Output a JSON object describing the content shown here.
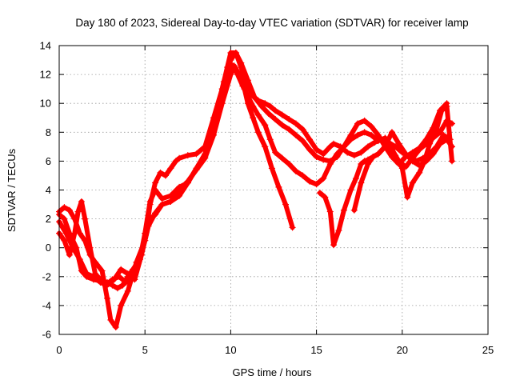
{
  "chart_data": {
    "type": "scatter",
    "title": "Day 180 of 2023, Sidereal Day-to-day VTEC variation (SDTVAR) for receiver lamp",
    "xlabel": "GPS time / hours",
    "ylabel": "SDTVAR / TECUs",
    "xlim": [
      0,
      25
    ],
    "ylim": [
      -6,
      14
    ],
    "xticks": [
      "0",
      "5",
      "10",
      "15",
      "20",
      "25"
    ],
    "yticks": [
      "-6",
      "-4",
      "-2",
      "0",
      "2",
      "4",
      "6",
      "8",
      "10",
      "12",
      "14"
    ],
    "grid": true,
    "marker": "+",
    "color": "#ff0000",
    "series": [
      {
        "name": "track-1",
        "x": [
          0.0,
          0.3,
          0.6,
          1.0,
          1.3,
          1.6,
          2.0,
          2.4,
          2.8,
          3.1,
          3.4,
          3.7,
          4.0,
          4.3,
          4.7,
          5.0,
          5.3,
          5.6,
          6.0,
          6.5,
          7.0,
          7.5,
          8.0,
          8.5,
          9.0,
          9.5,
          9.8,
          10.0,
          10.2,
          10.4,
          10.6,
          10.8,
          11.0,
          11.3,
          11.6,
          12.0,
          12.4,
          12.8,
          13.2,
          13.6
        ],
        "y": [
          2.3,
          2.0,
          1.0,
          0.0,
          -1.6,
          -2.0,
          -2.2,
          -2.3,
          -2.4,
          -2.6,
          -2.8,
          -2.6,
          -2.0,
          -1.5,
          -0.8,
          0.5,
          2.0,
          2.3,
          3.0,
          3.2,
          3.6,
          4.5,
          5.5,
          6.5,
          8.5,
          10.5,
          11.8,
          12.7,
          12.6,
          12.2,
          11.8,
          11.0,
          10.0,
          9.0,
          8.0,
          7.0,
          5.5,
          4.2,
          3.0,
          1.4
        ]
      },
      {
        "name": "track-2",
        "x": [
          0.0,
          0.3,
          0.6,
          0.9,
          1.2,
          1.5,
          1.8,
          2.1,
          2.5,
          2.8,
          3.0,
          3.3,
          3.6,
          4.0,
          4.5,
          5.0,
          5.3,
          5.6,
          5.9,
          6.2,
          6.5,
          6.8,
          7.0,
          7.5,
          8.0,
          8.5,
          9.0,
          9.5,
          9.8,
          10.0,
          10.3,
          10.6,
          11.0,
          11.3,
          11.6,
          12.0,
          12.3,
          12.6,
          13.0,
          13.4,
          13.8,
          14.2,
          14.6,
          15.0,
          15.4,
          15.8,
          16.0,
          16.4,
          16.8,
          17.2,
          17.6,
          18.0,
          18.4,
          18.8,
          19.2,
          19.6,
          20.0,
          20.4,
          20.8,
          21.2,
          21.6,
          22.0,
          22.4,
          22.8
        ],
        "y": [
          2.5,
          2.8,
          2.6,
          2.0,
          1.0,
          0.5,
          -0.5,
          -1.0,
          -1.6,
          -3.5,
          -5.0,
          -5.5,
          -4.0,
          -3.0,
          -1.0,
          0.5,
          3.0,
          4.5,
          5.2,
          5.0,
          5.5,
          6.0,
          6.2,
          6.4,
          6.5,
          7.0,
          9.0,
          11.0,
          12.5,
          13.5,
          13.5,
          12.5,
          11.2,
          10.5,
          10.2,
          10.0,
          9.8,
          9.5,
          9.2,
          8.9,
          8.6,
          8.2,
          7.5,
          6.8,
          6.5,
          7.0,
          7.2,
          7.0,
          6.6,
          6.4,
          6.6,
          7.0,
          7.3,
          7.5,
          7.3,
          7.0,
          6.6,
          6.3,
          6.0,
          6.2,
          6.5,
          7.0,
          7.8,
          7.5
        ]
      },
      {
        "name": "track-3",
        "x": [
          0.0,
          0.3,
          0.6,
          0.9,
          1.1,
          1.3,
          1.5,
          1.8,
          2.1,
          2.4,
          2.8,
          3.1,
          3.5,
          3.9,
          4.3,
          4.7,
          5.0,
          5.3,
          5.6,
          6.0,
          6.5,
          7.0,
          7.5,
          8.0,
          8.5,
          9.0,
          9.3,
          9.6,
          10.0,
          10.3,
          10.6,
          11.0,
          11.4,
          11.8,
          12.2,
          12.6,
          13.0,
          13.4,
          13.8,
          14.2,
          14.6,
          15.0,
          15.4,
          15.8,
          16.2,
          16.6,
          17.0,
          17.4,
          17.8,
          18.2,
          18.6,
          19.0,
          19.4,
          19.8,
          20.2,
          20.6,
          21.0,
          21.4,
          21.8,
          22.2,
          22.6
        ],
        "y": [
          1.0,
          0.5,
          -0.5,
          1.0,
          2.5,
          3.2,
          2.0,
          0.0,
          -1.8,
          -2.2,
          -2.5,
          -2.2,
          -2.0,
          -2.4,
          -1.8,
          -0.8,
          1.0,
          3.2,
          4.0,
          3.4,
          3.6,
          4.2,
          4.5,
          5.5,
          6.3,
          8.0,
          10.0,
          11.5,
          13.0,
          13.5,
          12.8,
          11.6,
          10.4,
          9.8,
          9.3,
          8.9,
          8.5,
          8.2,
          7.8,
          7.4,
          6.8,
          6.3,
          6.1,
          6.0,
          6.3,
          7.0,
          7.8,
          8.6,
          8.8,
          8.4,
          7.8,
          7.0,
          6.3,
          5.8,
          6.3,
          6.6,
          6.9,
          7.5,
          8.3,
          9.5,
          10.0
        ]
      },
      {
        "name": "track-4",
        "x": [
          0.0,
          0.4,
          0.8,
          1.2,
          1.6,
          2.0,
          2.4,
          2.8,
          3.2,
          3.6,
          4.0,
          4.4,
          4.8,
          5.2,
          5.6,
          6.0,
          6.5,
          7.0,
          7.5,
          8.0,
          8.5,
          9.0,
          9.5,
          10.0,
          10.2,
          10.4,
          10.7,
          11.0,
          11.3,
          11.6,
          12.0,
          12.3,
          12.6,
          13.0,
          13.4,
          13.8,
          14.2,
          14.6,
          15.0,
          15.4,
          15.8,
          16.2,
          16.6,
          17.0,
          17.4,
          17.8,
          18.2,
          18.6,
          19.0,
          19.4,
          19.8,
          20.2,
          20.6,
          21.0,
          21.4,
          21.8,
          22.2,
          22.6,
          22.9
        ],
        "y": [
          1.8,
          1.0,
          0.0,
          -0.8,
          -1.8,
          -2.0,
          -2.4,
          -2.6,
          -2.2,
          -1.5,
          -1.8,
          -2.2,
          -0.5,
          1.5,
          2.4,
          3.0,
          3.2,
          4.0,
          4.6,
          5.4,
          6.2,
          7.8,
          10.0,
          12.0,
          12.5,
          12.0,
          11.2,
          10.5,
          9.8,
          9.2,
          8.5,
          7.5,
          6.6,
          6.2,
          5.8,
          5.3,
          5.0,
          4.6,
          4.4,
          4.8,
          5.8,
          6.5,
          7.0,
          7.5,
          7.8,
          8.0,
          7.8,
          7.4,
          7.6,
          6.8,
          6.0,
          5.6,
          6.2,
          6.8,
          7.2,
          7.6,
          8.0,
          8.8,
          8.6
        ]
      },
      {
        "name": "track-5",
        "x": [
          15.2,
          15.5,
          15.8,
          16.0,
          16.3,
          16.6,
          17.0,
          17.3,
          17.6,
          17.8,
          18.0,
          18.3,
          18.6,
          19.0,
          19.3,
          19.6,
          20.0,
          20.3,
          20.6,
          21.0,
          21.3,
          21.6,
          22.0,
          22.3,
          22.6,
          22.9
        ],
        "y": [
          3.8,
          3.5,
          2.5,
          0.2,
          1.2,
          2.6,
          4.0,
          4.8,
          5.8,
          6.0,
          6.1,
          6.3,
          6.5,
          7.0,
          7.0,
          6.4,
          5.5,
          3.5,
          4.5,
          5.2,
          6.0,
          7.2,
          8.2,
          9.5,
          9.8,
          6.0
        ]
      },
      {
        "name": "track-6",
        "x": [
          17.2,
          17.6,
          18.0,
          18.3,
          18.6,
          19.0,
          19.4,
          19.8,
          20.2,
          20.6,
          21.0,
          21.4,
          21.8,
          22.2,
          22.6,
          22.9
        ],
        "y": [
          2.6,
          4.5,
          5.8,
          6.3,
          6.5,
          7.0,
          8.0,
          7.2,
          6.5,
          6.0,
          5.7,
          6.0,
          6.5,
          7.2,
          7.5,
          7.0
        ]
      }
    ]
  }
}
